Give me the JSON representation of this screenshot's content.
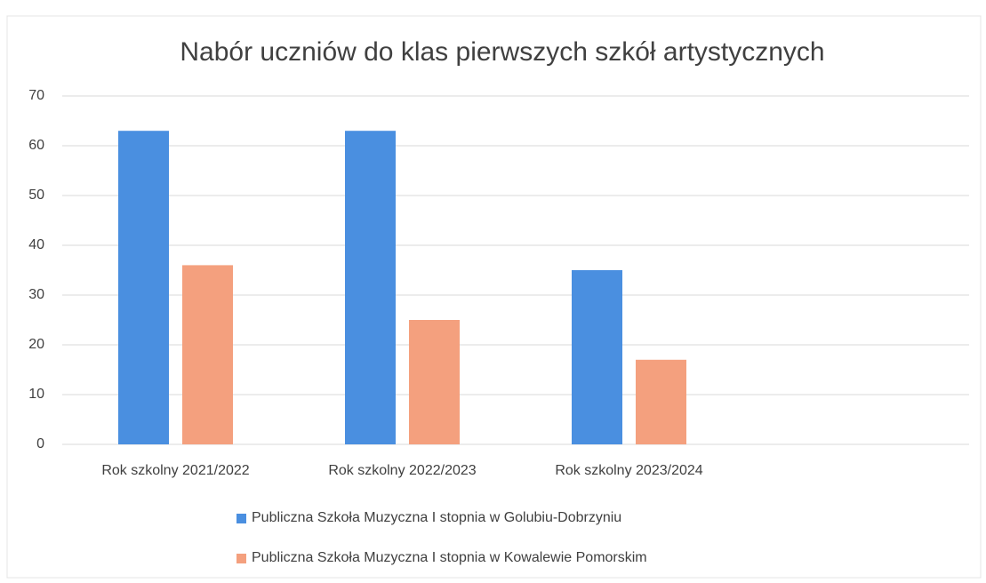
{
  "chart_data": {
    "type": "bar",
    "title": "Nabór uczniów do klas pierwszych szkół artystycznych",
    "categories": [
      "Rok szkolny 2021/2022",
      "Rok szkolny 2022/2023",
      "Rok szkolny 2023/2024",
      null
    ],
    "series": [
      {
        "name": "Publiczna Szkoła Muzyczna I stopnia w Golubiu-Dobrzyniu",
        "color": "#4a8fe0",
        "values": [
          63,
          63,
          35,
          null
        ]
      },
      {
        "name": "Publiczna Szkoła Muzyczna I stopnia w Kowalewie Pomorskim",
        "color": "#f4a07e",
        "values": [
          36,
          25,
          17,
          null
        ]
      }
    ],
    "ylim": [
      0,
      70
    ],
    "yticks": [
      0,
      10,
      20,
      30,
      40,
      50,
      60,
      70
    ],
    "grid": true,
    "legend": "bottom"
  }
}
